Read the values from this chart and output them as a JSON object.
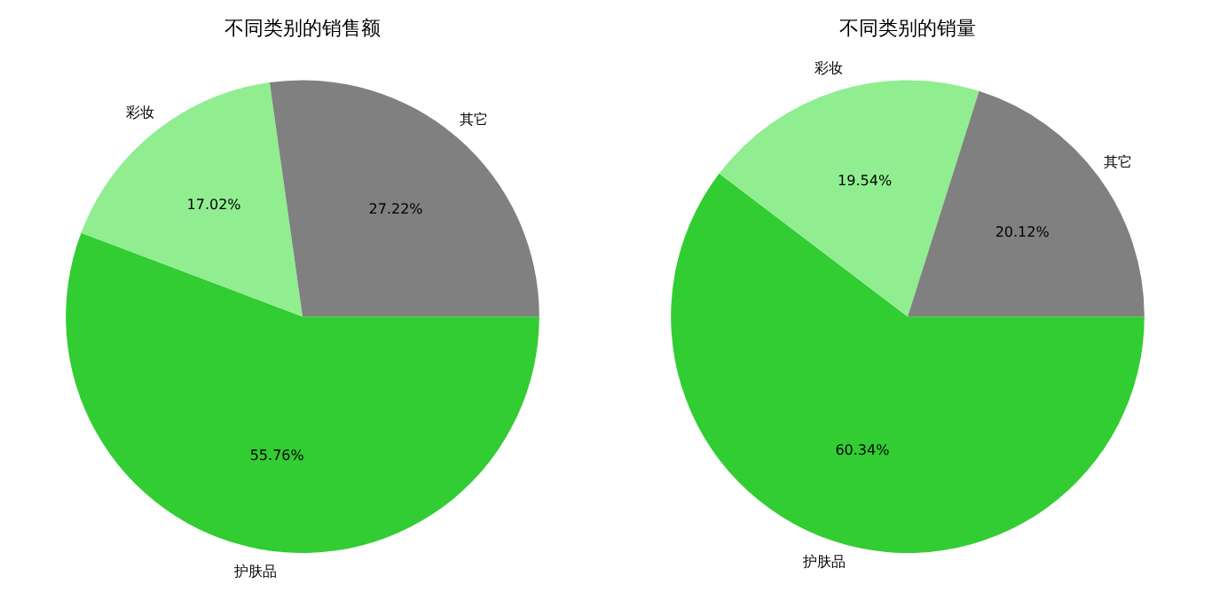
{
  "chart_data": [
    {
      "type": "pie",
      "title": "不同类别的销售额",
      "categories": [
        "护肤品",
        "彩妆",
        "其它"
      ],
      "values": [
        55.76,
        17.02,
        27.22
      ],
      "colors": [
        "#32cd32",
        "#90ee90",
        "#808080"
      ],
      "value_labels": [
        "55.76%",
        "17.02%",
        "27.22%"
      ],
      "legend": false
    },
    {
      "type": "pie",
      "title": "不同类别的销量",
      "categories": [
        "护肤品",
        "彩妆",
        "其它"
      ],
      "values": [
        60.34,
        19.54,
        20.12
      ],
      "colors": [
        "#32cd32",
        "#90ee90",
        "#808080"
      ],
      "value_labels": [
        "60.34%",
        "19.54%",
        "20.12%"
      ],
      "legend": false
    }
  ]
}
